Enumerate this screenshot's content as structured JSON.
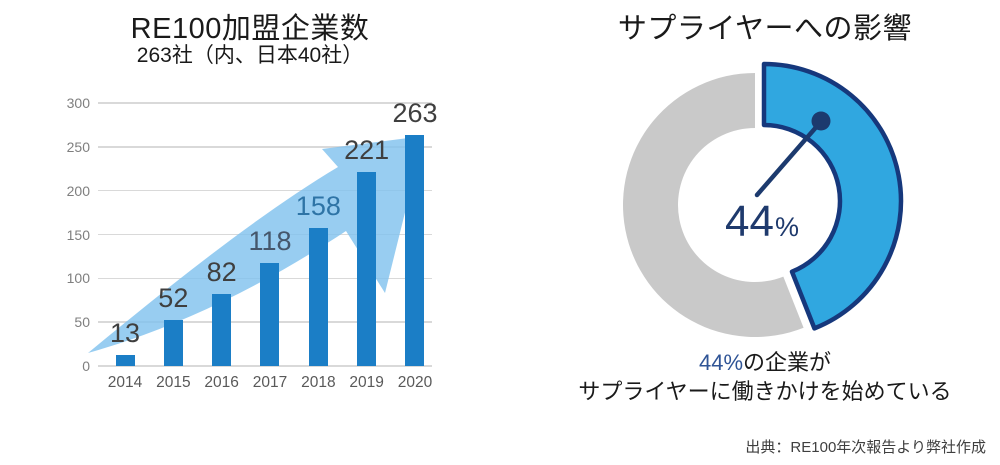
{
  "source_note": "出典：RE100年次報告より弊社作成",
  "colors": {
    "bar": "#1b7ec6",
    "arrow": "#7ec1ee",
    "grid": "#d9d9d9",
    "y_tick_text": "#7f7f7f",
    "x_tick_text": "#595959",
    "title_text": "#1a1a1a",
    "donut_slice": "#30a7e0",
    "donut_remainder": "#c9c9c9",
    "donut_outline": "#16387c",
    "needle": "#1c3a6e",
    "center_text": "#1f3a6d",
    "caption_highlight": "#2f5496",
    "caption_text": "#1a1a1a",
    "source_text": "#3f3f3f"
  },
  "chart_data": [
    {
      "type": "bar",
      "title": "RE100加盟企業数",
      "subtitle": "263社（内、日本40社）",
      "categories": [
        "2014",
        "2015",
        "2016",
        "2017",
        "2018",
        "2019",
        "2020"
      ],
      "values": [
        13,
        52,
        82,
        118,
        158,
        221,
        263
      ],
      "value_label_colors": [
        "#3f3f3f",
        "#3f3f3f",
        "#3f3f3f",
        "#45566b",
        "#2e74a6",
        "#3f3f3f",
        "#3f3f3f"
      ],
      "ylim": [
        0,
        300
      ],
      "yticks": [
        0,
        50,
        100,
        150,
        200,
        250,
        300
      ],
      "xlabel": "",
      "ylabel": "",
      "grid": true,
      "legend": false,
      "annotations": [
        "upward-growth-arrow"
      ]
    },
    {
      "type": "pie",
      "style": "donut",
      "title": "サプライヤーへの影響",
      "values": [
        44,
        56
      ],
      "slice_colors": [
        "#30a7e0",
        "#c9c9c9"
      ],
      "exploded": [
        true,
        false
      ],
      "start_angle_deg": 0,
      "legend": false,
      "center_label": {
        "value": "44",
        "unit": "%"
      },
      "caption": {
        "highlight": "44%",
        "rest": "の企業が",
        "line2": "サプライヤーに働きかけを始めている"
      }
    }
  ]
}
